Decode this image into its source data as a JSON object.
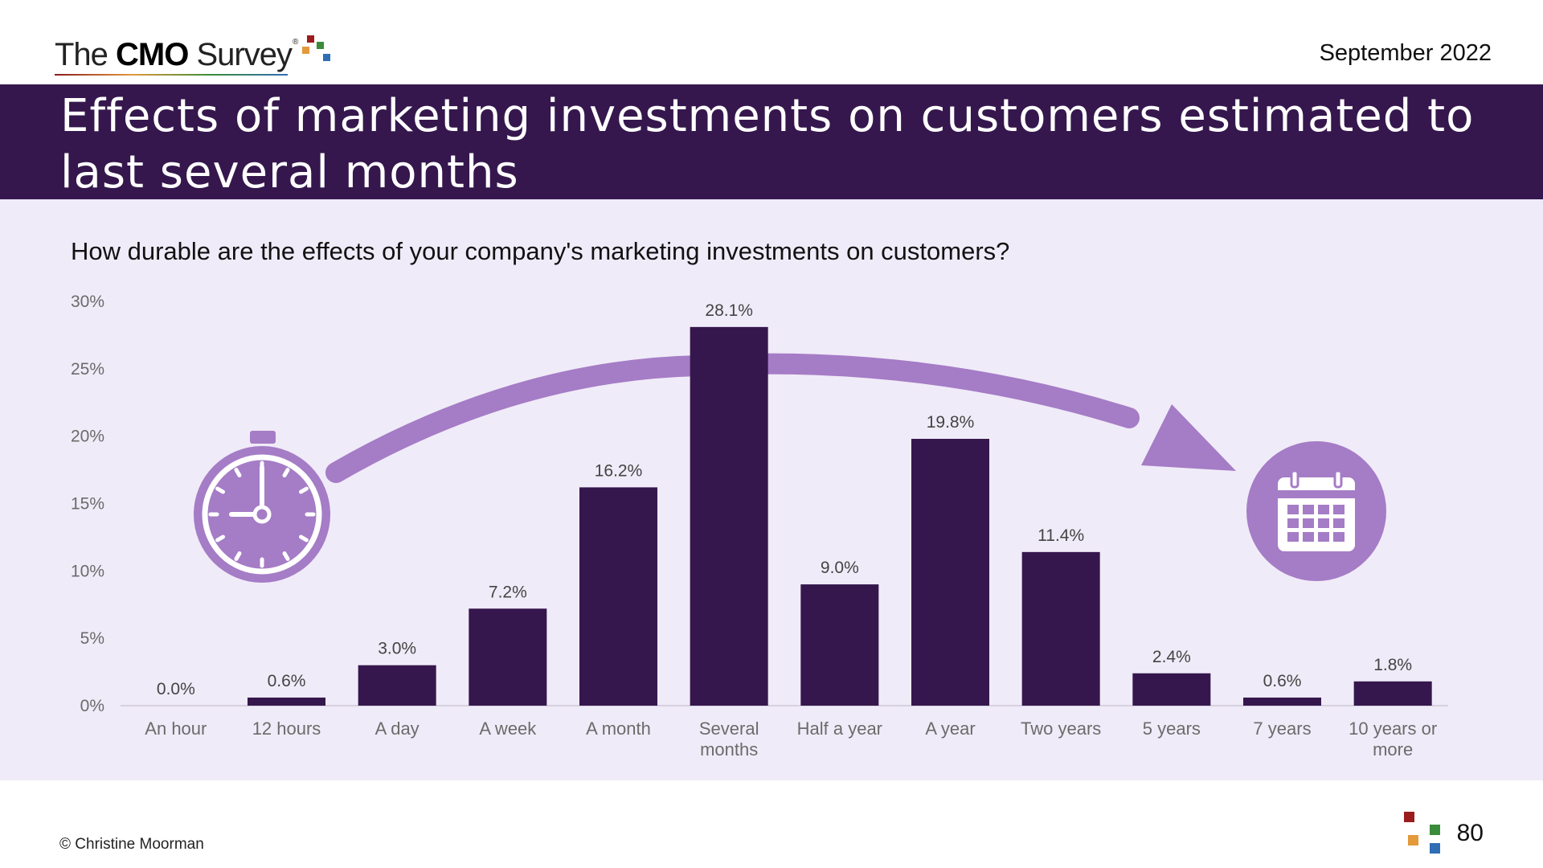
{
  "header": {
    "logo_prefix": "The ",
    "logo_bold": "CMO",
    "logo_suffix": " Survey",
    "logo_mark": "®",
    "date": "September 2022"
  },
  "title": "Effects of marketing investments on customers estimated to last several months",
  "question": "How durable are the effects of your company's marketing investments on customers?",
  "footer": {
    "copyright": "© Christine Moorman",
    "page_number": "80"
  },
  "icons": {
    "left": "stopwatch-icon",
    "right": "calendar-icon",
    "arrow": "curved-arrow"
  },
  "colors": {
    "bar": "#35174d",
    "title_band": "#35174d",
    "panel": "#f0ebf8",
    "accent": "#a57cc6",
    "logo_red": "#9b1c1c",
    "logo_orange": "#e39a3b",
    "logo_green": "#3a8c3a",
    "logo_blue": "#2f6db5"
  },
  "chart_data": {
    "type": "bar",
    "categories": [
      "An hour",
      "12 hours",
      "A day",
      "A week",
      "A month",
      "Several months",
      "Half a year",
      "A year",
      "Two years",
      "5 years",
      "7 years",
      "10 years or more"
    ],
    "category_lines": [
      [
        "An hour"
      ],
      [
        "12 hours"
      ],
      [
        "A day"
      ],
      [
        "A week"
      ],
      [
        "A month"
      ],
      [
        "Several",
        "months"
      ],
      [
        "Half a year"
      ],
      [
        "A year"
      ],
      [
        "Two years"
      ],
      [
        "5 years"
      ],
      [
        "7 years"
      ],
      [
        "10 years or",
        "more"
      ]
    ],
    "values": [
      0.0,
      0.6,
      3.0,
      7.2,
      16.2,
      28.1,
      9.0,
      19.8,
      11.4,
      2.4,
      0.6,
      1.8
    ],
    "value_labels": [
      "0.0%",
      "0.6%",
      "3.0%",
      "7.2%",
      "16.2%",
      "28.1%",
      "9.0%",
      "19.8%",
      "11.4%",
      "2.4%",
      "0.6%",
      "1.8%"
    ],
    "yticks": [
      0,
      5,
      10,
      15,
      20,
      25,
      30
    ],
    "ytick_labels": [
      "0%",
      "5%",
      "10%",
      "15%",
      "20%",
      "25%",
      "30%"
    ],
    "ylim": [
      0,
      30
    ],
    "grid": false,
    "legend": "none"
  }
}
